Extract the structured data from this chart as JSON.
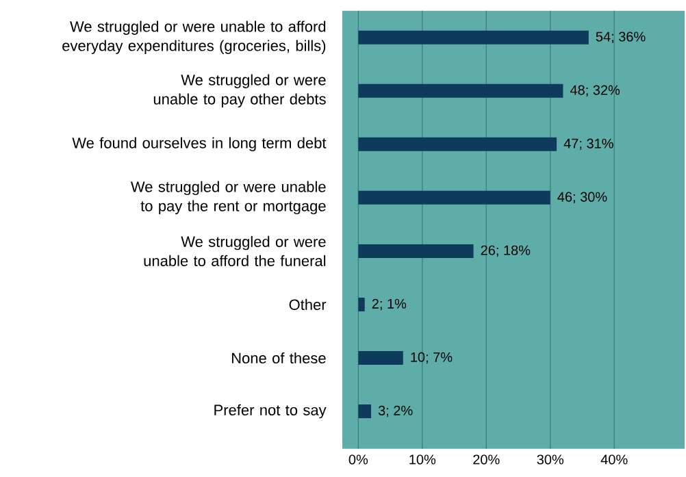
{
  "chart_data": {
    "type": "bar",
    "orientation": "horizontal",
    "categories": [
      "We struggled or were unable to afford everyday expenditures (groceries, bills)",
      "We struggled or were unable to pay other debts",
      "We found ourselves in long term debt",
      "We struggled or were unable to pay the rent or mortgage",
      "We struggled or were unable to afford the funeral",
      "Other",
      "None of these",
      "Prefer not to say"
    ],
    "values": [
      36,
      32,
      31,
      30,
      18,
      1,
      7,
      2
    ],
    "value_labels": [
      "54; 36%",
      "48; 32%",
      "47; 31%",
      "46; 30%",
      "26; 18%",
      "2; 1%",
      "10; 7%",
      "3; 2%"
    ],
    "color": "#0e3a5c",
    "xlim": [
      -2.5,
      51
    ],
    "xticks": [
      {
        "value": 0,
        "label": "0%"
      },
      {
        "value": 10,
        "label": "10%"
      },
      {
        "value": 20,
        "label": "20%"
      },
      {
        "value": 30,
        "label": "30%"
      },
      {
        "value": 40,
        "label": "40%"
      }
    ],
    "grid": "x"
  }
}
